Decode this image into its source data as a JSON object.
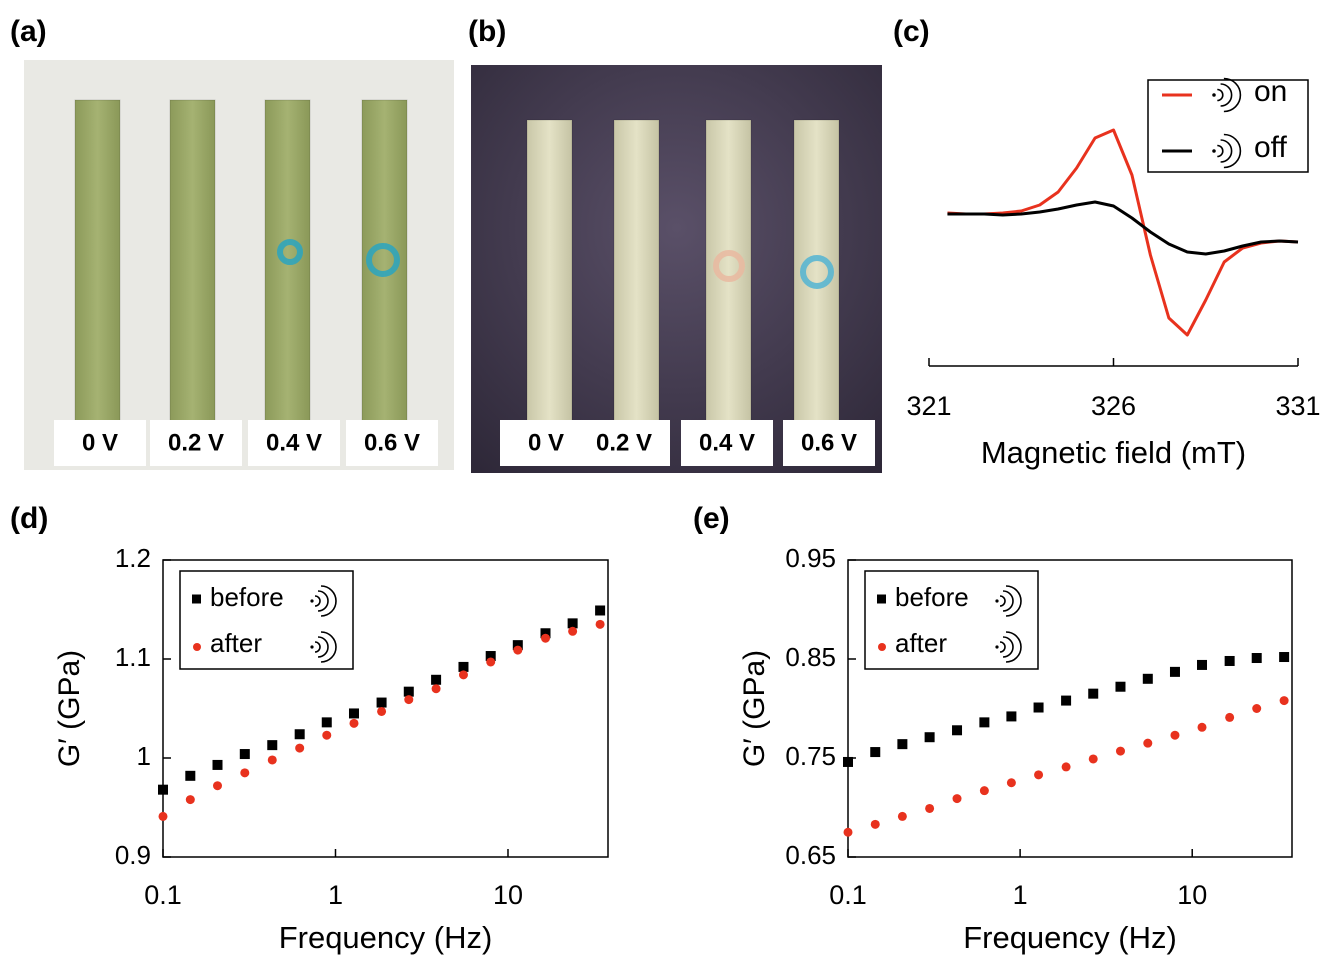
{
  "photos": [
    {
      "label": "(a)",
      "strips": [
        "0 V",
        "0.2 V",
        "0.4 V",
        "0.6 V"
      ]
    },
    {
      "label": "(b)",
      "strips": [
        "0 V",
        "0.2 V",
        "0.4 V",
        "0.6 V"
      ]
    }
  ],
  "chart_data": [
    {
      "type": "line",
      "label": "(c)",
      "x_label": "Magnetic field (mT)",
      "frame": false,
      "legend": "upper right",
      "x": [
        321.5,
        322,
        322.5,
        323,
        323.5,
        324,
        324.5,
        325,
        325.5,
        326,
        326.5,
        327,
        327.5,
        328,
        328.5,
        329,
        329.5,
        330,
        330.5,
        331
      ],
      "series": [
        {
          "name": "on",
          "color": "#e8321e",
          "values": [
            0.02,
            0.01,
            0.01,
            0.02,
            0.04,
            0.1,
            0.23,
            0.47,
            0.77,
            0.85,
            0.4,
            -0.4,
            -1.03,
            -1.2,
            -0.85,
            -0.47,
            -0.33,
            -0.28,
            -0.26,
            -0.27
          ]
        },
        {
          "name": "off",
          "color": "#000000",
          "values": [
            0.01,
            0.01,
            0.01,
            0,
            0.01,
            0.03,
            0.06,
            0.1,
            0.13,
            0.09,
            -0.03,
            -0.17,
            -0.29,
            -0.37,
            -0.39,
            -0.36,
            -0.31,
            -0.27,
            -0.26,
            -0.27
          ]
        }
      ],
      "xlim": [
        321,
        331
      ],
      "xticks": [
        321,
        326,
        331
      ],
      "ylim": [
        -1.3,
        1.0
      ]
    },
    {
      "type": "scatter",
      "label": "(d)",
      "x_label": "Frequency (Hz)",
      "y_label": "G′ (GPa)",
      "frame": true,
      "legend": "upper left",
      "xscale": "log",
      "x": [
        0.1,
        0.144,
        0.207,
        0.298,
        0.43,
        0.62,
        0.89,
        1.28,
        1.85,
        2.66,
        3.83,
        5.52,
        7.94,
        11.4,
        16.5,
        23.7,
        34.2
      ],
      "series": [
        {
          "name": "before",
          "color": "#000000",
          "marker": "square",
          "values": [
            0.968,
            0.982,
            0.993,
            1.004,
            1.013,
            1.024,
            1.036,
            1.045,
            1.056,
            1.067,
            1.079,
            1.092,
            1.103,
            1.114,
            1.126,
            1.136,
            1.149
          ]
        },
        {
          "name": "after",
          "color": "#e8321e",
          "marker": "circle",
          "values": [
            0.941,
            0.958,
            0.972,
            0.985,
            0.998,
            1.01,
            1.023,
            1.035,
            1.047,
            1.059,
            1.07,
            1.084,
            1.097,
            1.109,
            1.121,
            1.128,
            1.135
          ]
        }
      ],
      "xlim": [
        0.1,
        38
      ],
      "xticks": [
        0.1,
        1,
        10
      ],
      "ylim": [
        0.9,
        1.2
      ],
      "yticks": [
        0.9,
        1,
        1.1,
        1.2
      ]
    },
    {
      "type": "scatter",
      "label": "(e)",
      "x_label": "Frequency (Hz)",
      "y_label": "G′ (GPa)",
      "frame": true,
      "legend": "upper left",
      "xscale": "log",
      "x": [
        0.1,
        0.144,
        0.207,
        0.298,
        0.43,
        0.62,
        0.89,
        1.28,
        1.85,
        2.66,
        3.83,
        5.52,
        7.94,
        11.4,
        16.5,
        23.7,
        34.2
      ],
      "series": [
        {
          "name": "before",
          "color": "#000000",
          "marker": "square",
          "values": [
            0.746,
            0.756,
            0.764,
            0.771,
            0.778,
            0.786,
            0.792,
            0.801,
            0.808,
            0.815,
            0.822,
            0.83,
            0.837,
            0.844,
            0.848,
            0.851,
            0.852
          ]
        },
        {
          "name": "after",
          "color": "#e8321e",
          "marker": "circle",
          "values": [
            0.675,
            0.683,
            0.691,
            0.699,
            0.709,
            0.717,
            0.725,
            0.733,
            0.741,
            0.749,
            0.757,
            0.765,
            0.773,
            0.781,
            0.791,
            0.8,
            0.808
          ]
        }
      ],
      "xlim": [
        0.1,
        38
      ],
      "xticks": [
        0.1,
        1,
        10
      ],
      "ylim": [
        0.65,
        0.95
      ],
      "yticks": [
        0.65,
        0.75,
        0.85,
        0.95
      ]
    }
  ]
}
